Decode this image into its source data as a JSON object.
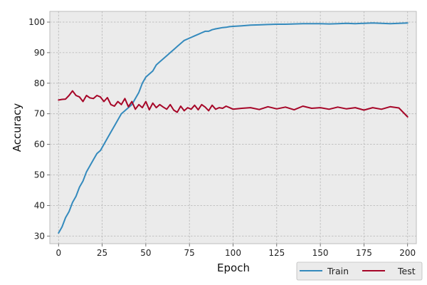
{
  "chart_data": {
    "type": "line",
    "title": "",
    "xlabel": "Epoch",
    "ylabel": "Accuracy",
    "xlim": [
      -5,
      205
    ],
    "ylim": [
      27.5,
      103.5
    ],
    "xticks": [
      0,
      25,
      50,
      75,
      100,
      125,
      150,
      175,
      200
    ],
    "yticks": [
      30,
      40,
      50,
      60,
      70,
      80,
      90,
      100
    ],
    "grid": true,
    "legend_position": "bottom-right",
    "colors": {
      "plot_bg": "#ebebeb",
      "grid": "#b5b5b5",
      "spine": "#bcbcbc"
    },
    "series": [
      {
        "name": "Train",
        "color": "#348abd",
        "x": [
          0,
          2,
          4,
          6,
          8,
          10,
          12,
          14,
          16,
          18,
          20,
          22,
          24,
          26,
          28,
          30,
          32,
          34,
          36,
          38,
          40,
          42,
          44,
          46,
          48,
          50,
          52,
          54,
          56,
          58,
          60,
          62,
          64,
          66,
          68,
          70,
          72,
          74,
          76,
          78,
          80,
          82,
          84,
          86,
          88,
          90,
          92,
          94,
          96,
          98,
          100,
          105,
          110,
          115,
          120,
          125,
          130,
          135,
          140,
          145,
          150,
          155,
          160,
          165,
          170,
          175,
          180,
          185,
          190,
          195,
          200
        ],
        "values": [
          31,
          33,
          36,
          38,
          41,
          43,
          46,
          48,
          51,
          53,
          55,
          57,
          58,
          60,
          62,
          64,
          66,
          68,
          70,
          71,
          72,
          73,
          75,
          77,
          80,
          82,
          83,
          84,
          86,
          87,
          88,
          89,
          90,
          91,
          92,
          93,
          94,
          94.5,
          95,
          95.5,
          96,
          96.5,
          97,
          97,
          97.5,
          97.8,
          98,
          98.2,
          98.3,
          98.5,
          98.6,
          98.8,
          99,
          99.1,
          99.2,
          99.3,
          99.3,
          99.4,
          99.5,
          99.5,
          99.5,
          99.4,
          99.5,
          99.6,
          99.5,
          99.6,
          99.7,
          99.6,
          99.5,
          99.6,
          99.7
        ]
      },
      {
        "name": "Test",
        "color": "#a60628",
        "x": [
          0,
          2,
          4,
          6,
          8,
          10,
          12,
          14,
          16,
          18,
          20,
          22,
          24,
          26,
          28,
          30,
          32,
          34,
          36,
          38,
          40,
          42,
          44,
          46,
          48,
          50,
          52,
          54,
          56,
          58,
          60,
          62,
          64,
          66,
          68,
          70,
          72,
          74,
          76,
          78,
          80,
          82,
          84,
          86,
          88,
          90,
          92,
          94,
          96,
          98,
          100,
          105,
          110,
          115,
          120,
          125,
          130,
          135,
          140,
          145,
          150,
          155,
          160,
          165,
          170,
          175,
          180,
          185,
          190,
          195,
          200
        ],
        "values": [
          74.5,
          74.7,
          74.8,
          76,
          77.5,
          76,
          75.5,
          74,
          76,
          75.2,
          75,
          76,
          75.5,
          74,
          75.3,
          73,
          72.5,
          74,
          73,
          75,
          72.3,
          74,
          71.5,
          73,
          72,
          74,
          71.3,
          73.5,
          72,
          73,
          72.2,
          71.5,
          73,
          71.2,
          70.5,
          72.5,
          71,
          72,
          71.5,
          72.8,
          71.3,
          73,
          72.2,
          71,
          72.8,
          71.5,
          72,
          71.8,
          72.5,
          72,
          71.5,
          71.8,
          72,
          71.4,
          72.3,
          71.6,
          72.2,
          71.3,
          72.5,
          71.8,
          72,
          71.5,
          72.2,
          71.6,
          72,
          71.2,
          72,
          71.5,
          72.3,
          71.9,
          69
        ]
      }
    ]
  }
}
